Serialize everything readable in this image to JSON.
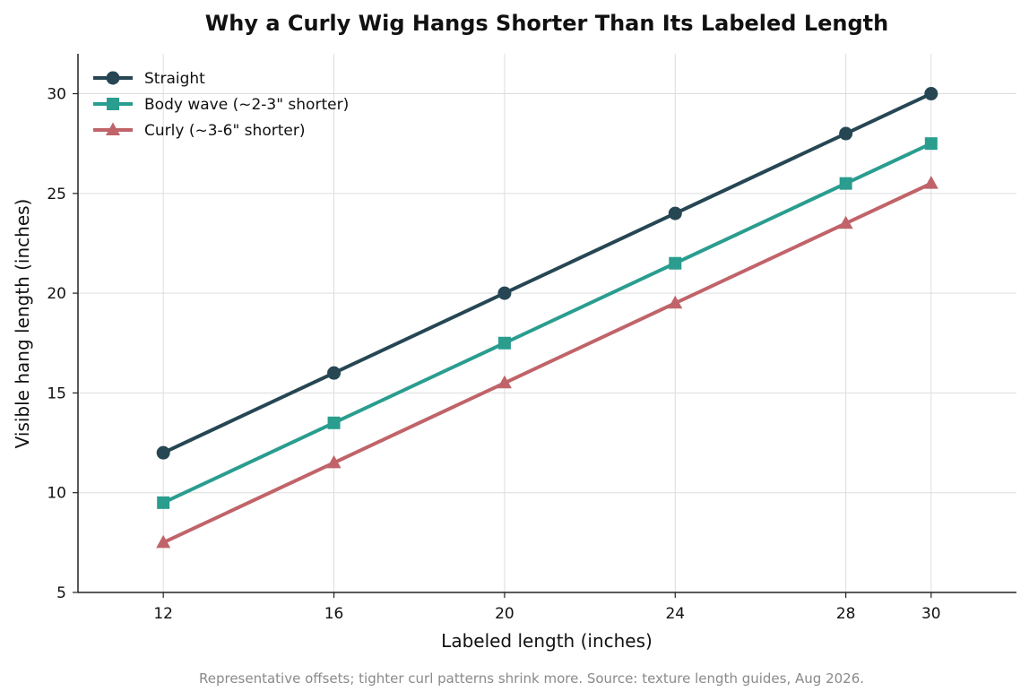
{
  "chart_data": {
    "type": "line",
    "title": "Why a Curly Wig Hangs Shorter Than Its Labeled Length",
    "xlabel": "Labeled length (inches)",
    "ylabel": "Visible hang length (inches)",
    "x": [
      12,
      16,
      20,
      24,
      28,
      30
    ],
    "xlim": [
      10,
      32
    ],
    "ylim": [
      5,
      32
    ],
    "xticks": [
      12,
      16,
      20,
      24,
      28,
      30
    ],
    "yticks": [
      5,
      10,
      15,
      20,
      25,
      30
    ],
    "grid": true,
    "legend_position": "top-left",
    "series": [
      {
        "name": "Straight",
        "values": [
          12,
          16,
          20,
          24,
          28,
          30
        ],
        "color": "#264653",
        "marker": "circle"
      },
      {
        "name": "Body wave (~2-3\" shorter)",
        "values": [
          9.5,
          13.5,
          17.5,
          21.5,
          25.5,
          27.5
        ],
        "color": "#2a9d8f",
        "marker": "square"
      },
      {
        "name": "Curly (~3-6\" shorter)",
        "values": [
          7.5,
          11.5,
          15.5,
          19.5,
          23.5,
          25.5
        ],
        "color": "#c0646a",
        "marker": "triangle"
      }
    ],
    "footnote": "Representative offsets; tighter curl patterns shrink more. Source: texture length guides, Aug 2026."
  }
}
